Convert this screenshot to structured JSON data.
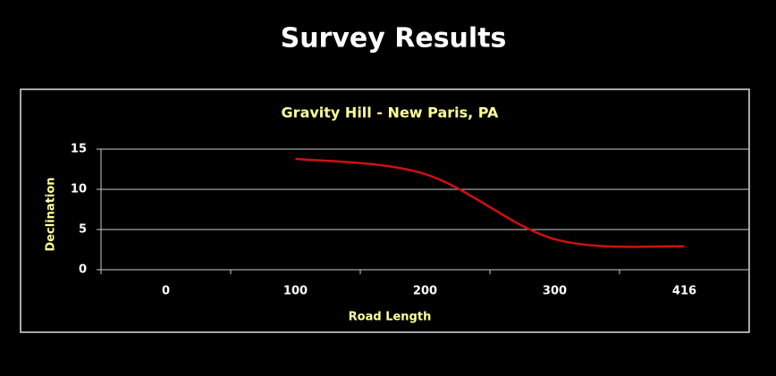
{
  "title": "Survey Results",
  "chart_data": {
    "type": "line",
    "title": "Gravity Hill - New Paris, PA",
    "x_label": "Road Length",
    "y_label": "Declination",
    "categories": [
      "0",
      "100",
      "200",
      "300",
      "416"
    ],
    "series": [
      {
        "name": "Declination",
        "color": "#d01010",
        "values": [
          null,
          13.8,
          11.9,
          3.8,
          2.9
        ]
      }
    ],
    "ylim": [
      0,
      15
    ],
    "yticks": [
      0,
      5,
      10,
      15
    ],
    "grid": true
  }
}
